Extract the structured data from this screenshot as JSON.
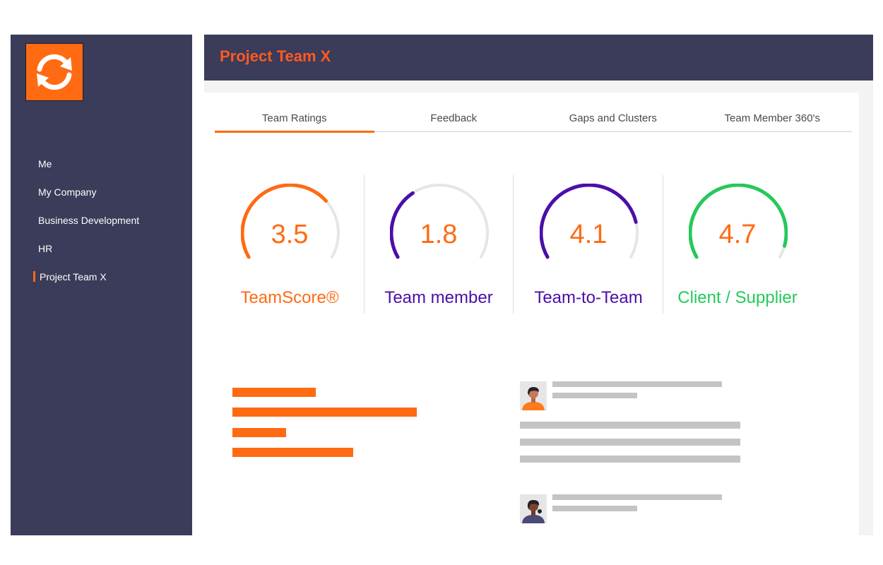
{
  "sidebar": {
    "logo_icon": "refresh-arrows-icon",
    "items": [
      {
        "label": "Me"
      },
      {
        "label": "My Company"
      },
      {
        "label": "Business Development"
      },
      {
        "label": "HR"
      },
      {
        "label": "Project Team X",
        "active": true
      }
    ]
  },
  "header": {
    "title": "Project Team X"
  },
  "tabs": [
    {
      "label": "Team Ratings",
      "active": true
    },
    {
      "label": "Feedback"
    },
    {
      "label": "Gaps and Clusters"
    },
    {
      "label": "Team Member 360's"
    }
  ],
  "gauges": [
    {
      "value": "3.5",
      "label": "TeamScore®",
      "level": 0.7,
      "color": "#ff6a13"
    },
    {
      "value": "1.8",
      "label": "Team member",
      "level": 0.36,
      "color": "#4b0fa8"
    },
    {
      "value": "4.1",
      "label": "Team-to-Team",
      "level": 0.82,
      "color": "#4b0fa8"
    },
    {
      "value": "4.7",
      "label": "Client / Supplier",
      "level": 0.94,
      "color": "#25c95a"
    }
  ],
  "colors": {
    "accent": "#ff6a13",
    "navy": "#3b3b5a",
    "purple": "#4b0fa8",
    "green": "#25c95a",
    "track": "#e6e6e6"
  }
}
